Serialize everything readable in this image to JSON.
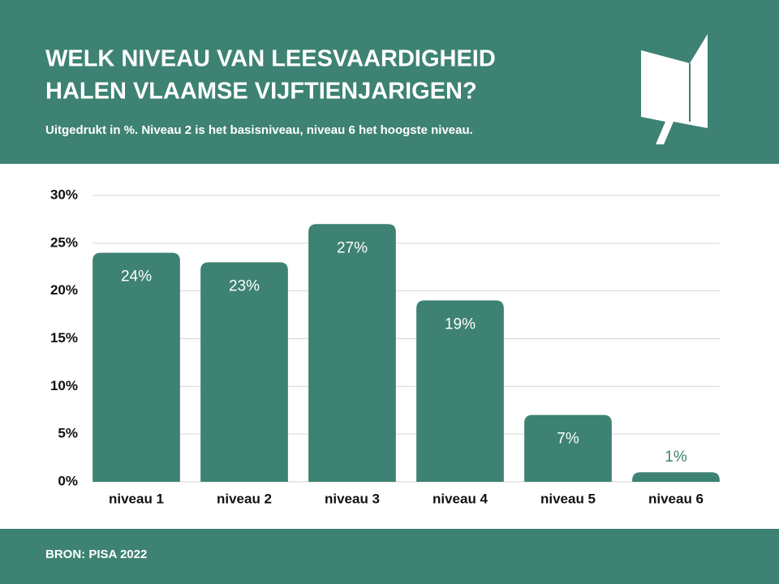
{
  "chart_data": {
    "type": "bar",
    "title": [
      "WELK NIVEAU VAN LEESVAARDIGHEID",
      "HALEN VLAAMSE VIJFTIENJARIGEN?"
    ],
    "subtitle": "Uitgedrukt in %. Niveau 2 is het basisniveau, niveau 6 het hoogste niveau.",
    "source": "BRON: PISA 2022",
    "categories": [
      "niveau 1",
      "niveau 2",
      "niveau 3",
      "niveau 4",
      "niveau 5",
      "niveau 6"
    ],
    "values": [
      24,
      23,
      27,
      19,
      7,
      1
    ],
    "value_labels": [
      "24%",
      "23%",
      "27%",
      "19%",
      "7%",
      "1%"
    ],
    "color": "#3d8272",
    "ylim": [
      0,
      30
    ],
    "yticks": [
      {
        "value": 0,
        "label": "0%"
      },
      {
        "value": 5,
        "label": "5%"
      },
      {
        "value": 10,
        "label": "10%"
      },
      {
        "value": 15,
        "label": "15%"
      },
      {
        "value": 20,
        "label": "20%"
      },
      {
        "value": 25,
        "label": "25%"
      },
      {
        "value": 30,
        "label": "30%"
      }
    ],
    "grid": true
  }
}
